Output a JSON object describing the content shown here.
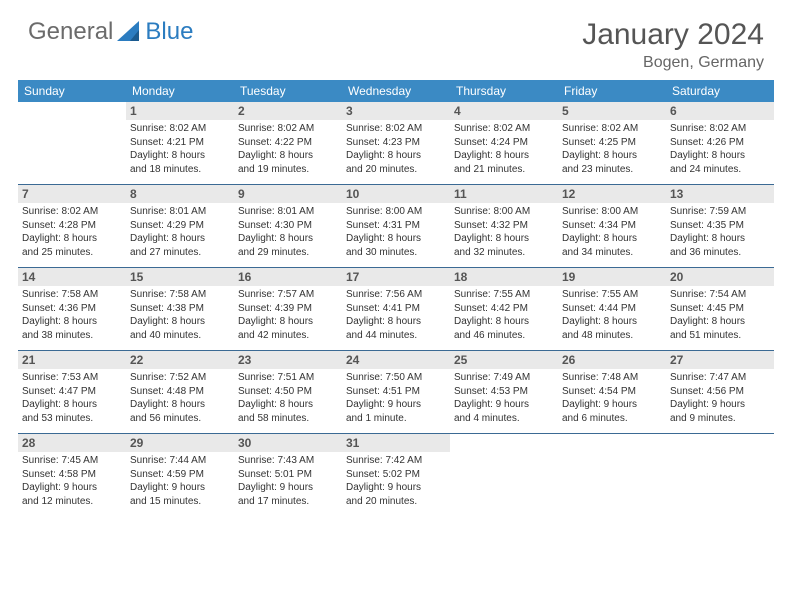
{
  "brand": {
    "part1": "General",
    "part2": "Blue"
  },
  "title": "January 2024",
  "location": "Bogen, Germany",
  "colors": {
    "header_bg": "#3b8ac4",
    "row_border": "#3b6a94",
    "daynum_bg": "#e9e9e9",
    "text_primary": "#333333",
    "text_muted": "#555555",
    "brand_gray": "#6b6b6b",
    "brand_blue": "#2b7cc0",
    "page_bg": "#ffffff"
  },
  "typography": {
    "title_fontsize": 30,
    "location_fontsize": 16,
    "weekday_fontsize": 12,
    "daynum_fontsize": 12,
    "body_fontsize": 10
  },
  "week_days": [
    "Sunday",
    "Monday",
    "Tuesday",
    "Wednesday",
    "Thursday",
    "Friday",
    "Saturday"
  ],
  "weeks": [
    [
      {
        "day": "",
        "lines": []
      },
      {
        "day": "1",
        "lines": [
          "Sunrise: 8:02 AM",
          "Sunset: 4:21 PM",
          "Daylight: 8 hours",
          "and 18 minutes."
        ]
      },
      {
        "day": "2",
        "lines": [
          "Sunrise: 8:02 AM",
          "Sunset: 4:22 PM",
          "Daylight: 8 hours",
          "and 19 minutes."
        ]
      },
      {
        "day": "3",
        "lines": [
          "Sunrise: 8:02 AM",
          "Sunset: 4:23 PM",
          "Daylight: 8 hours",
          "and 20 minutes."
        ]
      },
      {
        "day": "4",
        "lines": [
          "Sunrise: 8:02 AM",
          "Sunset: 4:24 PM",
          "Daylight: 8 hours",
          "and 21 minutes."
        ]
      },
      {
        "day": "5",
        "lines": [
          "Sunrise: 8:02 AM",
          "Sunset: 4:25 PM",
          "Daylight: 8 hours",
          "and 23 minutes."
        ]
      },
      {
        "day": "6",
        "lines": [
          "Sunrise: 8:02 AM",
          "Sunset: 4:26 PM",
          "Daylight: 8 hours",
          "and 24 minutes."
        ]
      }
    ],
    [
      {
        "day": "7",
        "lines": [
          "Sunrise: 8:02 AM",
          "Sunset: 4:28 PM",
          "Daylight: 8 hours",
          "and 25 minutes."
        ]
      },
      {
        "day": "8",
        "lines": [
          "Sunrise: 8:01 AM",
          "Sunset: 4:29 PM",
          "Daylight: 8 hours",
          "and 27 minutes."
        ]
      },
      {
        "day": "9",
        "lines": [
          "Sunrise: 8:01 AM",
          "Sunset: 4:30 PM",
          "Daylight: 8 hours",
          "and 29 minutes."
        ]
      },
      {
        "day": "10",
        "lines": [
          "Sunrise: 8:00 AM",
          "Sunset: 4:31 PM",
          "Daylight: 8 hours",
          "and 30 minutes."
        ]
      },
      {
        "day": "11",
        "lines": [
          "Sunrise: 8:00 AM",
          "Sunset: 4:32 PM",
          "Daylight: 8 hours",
          "and 32 minutes."
        ]
      },
      {
        "day": "12",
        "lines": [
          "Sunrise: 8:00 AM",
          "Sunset: 4:34 PM",
          "Daylight: 8 hours",
          "and 34 minutes."
        ]
      },
      {
        "day": "13",
        "lines": [
          "Sunrise: 7:59 AM",
          "Sunset: 4:35 PM",
          "Daylight: 8 hours",
          "and 36 minutes."
        ]
      }
    ],
    [
      {
        "day": "14",
        "lines": [
          "Sunrise: 7:58 AM",
          "Sunset: 4:36 PM",
          "Daylight: 8 hours",
          "and 38 minutes."
        ]
      },
      {
        "day": "15",
        "lines": [
          "Sunrise: 7:58 AM",
          "Sunset: 4:38 PM",
          "Daylight: 8 hours",
          "and 40 minutes."
        ]
      },
      {
        "day": "16",
        "lines": [
          "Sunrise: 7:57 AM",
          "Sunset: 4:39 PM",
          "Daylight: 8 hours",
          "and 42 minutes."
        ]
      },
      {
        "day": "17",
        "lines": [
          "Sunrise: 7:56 AM",
          "Sunset: 4:41 PM",
          "Daylight: 8 hours",
          "and 44 minutes."
        ]
      },
      {
        "day": "18",
        "lines": [
          "Sunrise: 7:55 AM",
          "Sunset: 4:42 PM",
          "Daylight: 8 hours",
          "and 46 minutes."
        ]
      },
      {
        "day": "19",
        "lines": [
          "Sunrise: 7:55 AM",
          "Sunset: 4:44 PM",
          "Daylight: 8 hours",
          "and 48 minutes."
        ]
      },
      {
        "day": "20",
        "lines": [
          "Sunrise: 7:54 AM",
          "Sunset: 4:45 PM",
          "Daylight: 8 hours",
          "and 51 minutes."
        ]
      }
    ],
    [
      {
        "day": "21",
        "lines": [
          "Sunrise: 7:53 AM",
          "Sunset: 4:47 PM",
          "Daylight: 8 hours",
          "and 53 minutes."
        ]
      },
      {
        "day": "22",
        "lines": [
          "Sunrise: 7:52 AM",
          "Sunset: 4:48 PM",
          "Daylight: 8 hours",
          "and 56 minutes."
        ]
      },
      {
        "day": "23",
        "lines": [
          "Sunrise: 7:51 AM",
          "Sunset: 4:50 PM",
          "Daylight: 8 hours",
          "and 58 minutes."
        ]
      },
      {
        "day": "24",
        "lines": [
          "Sunrise: 7:50 AM",
          "Sunset: 4:51 PM",
          "Daylight: 9 hours",
          "and 1 minute."
        ]
      },
      {
        "day": "25",
        "lines": [
          "Sunrise: 7:49 AM",
          "Sunset: 4:53 PM",
          "Daylight: 9 hours",
          "and 4 minutes."
        ]
      },
      {
        "day": "26",
        "lines": [
          "Sunrise: 7:48 AM",
          "Sunset: 4:54 PM",
          "Daylight: 9 hours",
          "and 6 minutes."
        ]
      },
      {
        "day": "27",
        "lines": [
          "Sunrise: 7:47 AM",
          "Sunset: 4:56 PM",
          "Daylight: 9 hours",
          "and 9 minutes."
        ]
      }
    ],
    [
      {
        "day": "28",
        "lines": [
          "Sunrise: 7:45 AM",
          "Sunset: 4:58 PM",
          "Daylight: 9 hours",
          "and 12 minutes."
        ]
      },
      {
        "day": "29",
        "lines": [
          "Sunrise: 7:44 AM",
          "Sunset: 4:59 PM",
          "Daylight: 9 hours",
          "and 15 minutes."
        ]
      },
      {
        "day": "30",
        "lines": [
          "Sunrise: 7:43 AM",
          "Sunset: 5:01 PM",
          "Daylight: 9 hours",
          "and 17 minutes."
        ]
      },
      {
        "day": "31",
        "lines": [
          "Sunrise: 7:42 AM",
          "Sunset: 5:02 PM",
          "Daylight: 9 hours",
          "and 20 minutes."
        ]
      },
      {
        "day": "",
        "lines": []
      },
      {
        "day": "",
        "lines": []
      },
      {
        "day": "",
        "lines": []
      }
    ]
  ]
}
